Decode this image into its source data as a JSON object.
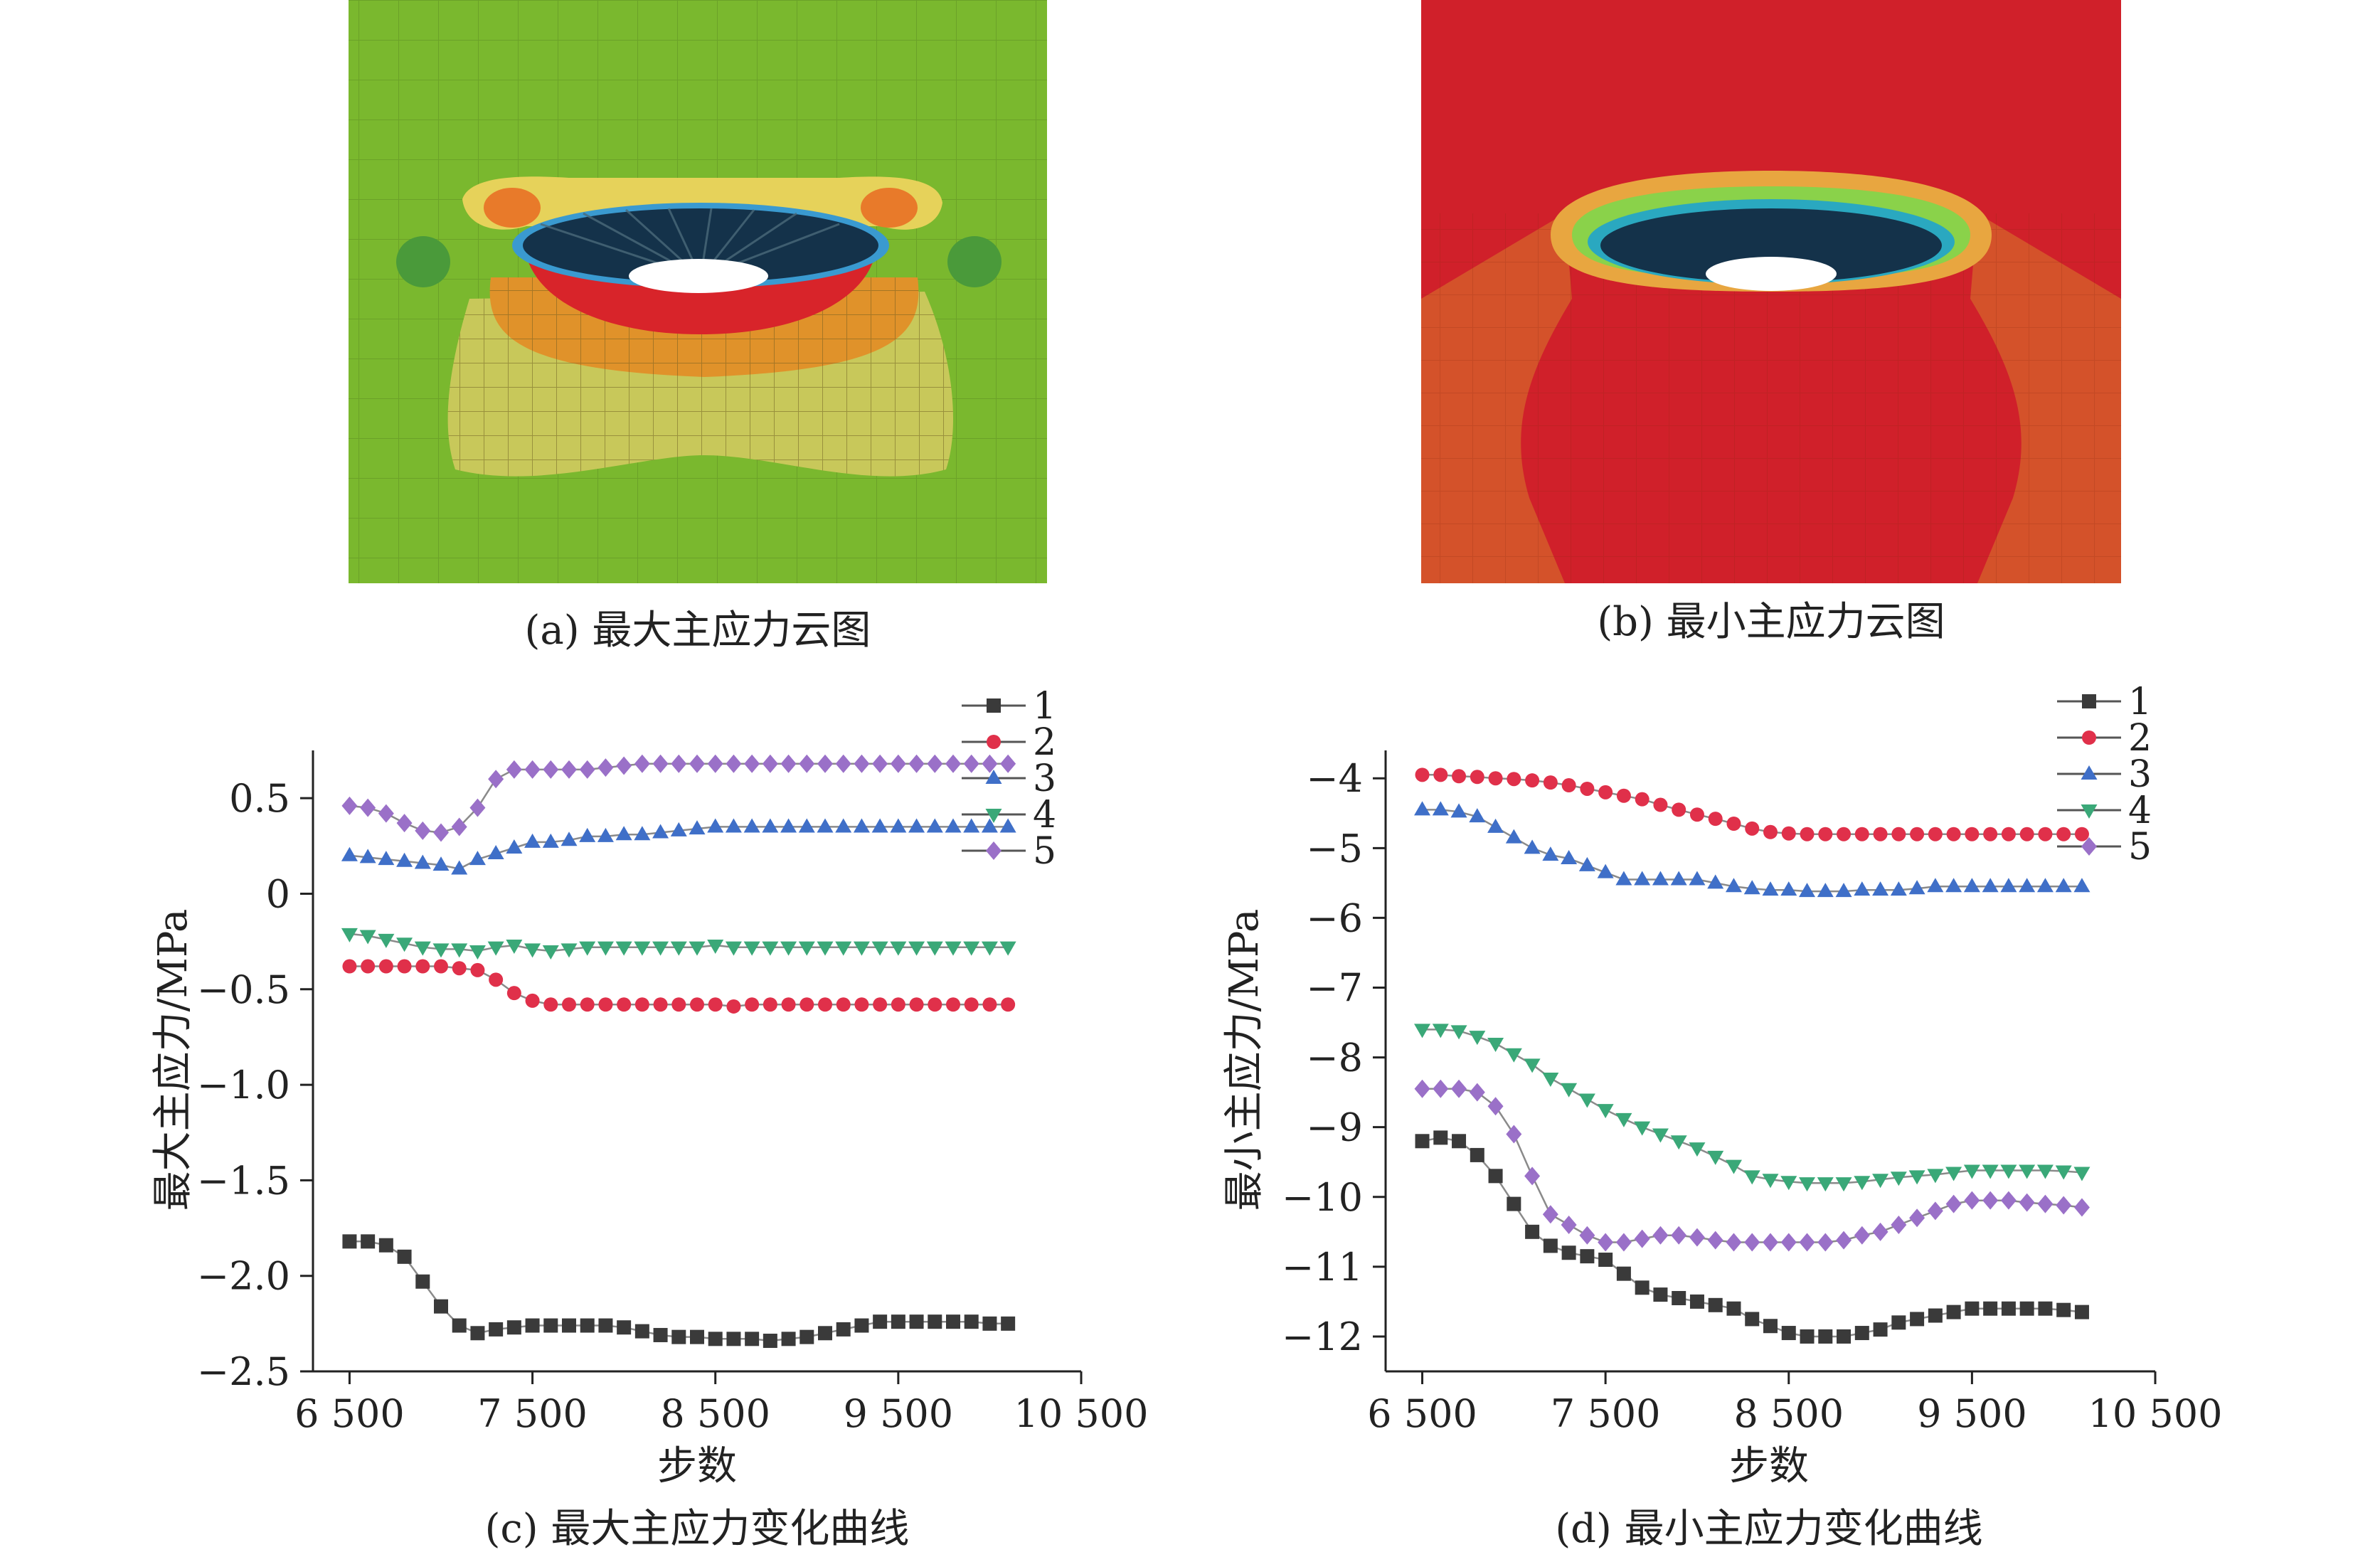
{
  "panels": {
    "a": {
      "caption": "(a) 最大主应力云图",
      "base_color": "#7ab82e"
    },
    "b": {
      "caption": "(b) 最小主应力云图",
      "base_color": "#d0202a"
    }
  },
  "chart_data": [
    {
      "type": "line",
      "panel": "c",
      "title": "(c) 最大主应力变化曲线",
      "xlabel": "步数",
      "ylabel": "最大主应力/MPa",
      "xlim": [
        6300,
        10500
      ],
      "ylim": [
        -2.5,
        0.75
      ],
      "xticks": [
        6500,
        7500,
        8500,
        9500,
        10500
      ],
      "xtick_labels": [
        "6 500",
        "7 500",
        "8 500",
        "9 500",
        "10 500"
      ],
      "yticks": [
        0.5,
        0,
        -0.5,
        -1.0,
        -1.5,
        -2.0,
        -2.5
      ],
      "ytick_labels": [
        "0.5",
        "0",
        "−0.5",
        "−1.0",
        "−1.5",
        "−2.0",
        "−2.5"
      ],
      "legend_position": "top-right",
      "x": [
        6500,
        6600,
        6700,
        6800,
        6900,
        7000,
        7100,
        7200,
        7300,
        7400,
        7500,
        7600,
        7700,
        7800,
        7900,
        8000,
        8100,
        8200,
        8300,
        8400,
        8500,
        8600,
        8700,
        8800,
        8900,
        9000,
        9100,
        9200,
        9300,
        9400,
        9500,
        9600,
        9700,
        9800,
        9900,
        10000,
        10100
      ],
      "series": [
        {
          "name": "1",
          "color": "#3a3a3a",
          "marker": "square",
          "values": [
            -1.82,
            -1.82,
            -1.84,
            -1.9,
            -2.03,
            -2.16,
            -2.26,
            -2.3,
            -2.28,
            -2.27,
            -2.26,
            -2.26,
            -2.26,
            -2.26,
            -2.26,
            -2.27,
            -2.29,
            -2.31,
            -2.32,
            -2.32,
            -2.33,
            -2.33,
            -2.33,
            -2.34,
            -2.33,
            -2.32,
            -2.3,
            -2.28,
            -2.26,
            -2.24,
            -2.24,
            -2.24,
            -2.24,
            -2.24,
            -2.24,
            -2.25,
            -2.25
          ]
        },
        {
          "name": "2",
          "color": "#e0304a",
          "marker": "circle",
          "values": [
            -0.38,
            -0.38,
            -0.38,
            -0.38,
            -0.38,
            -0.38,
            -0.39,
            -0.4,
            -0.45,
            -0.52,
            -0.56,
            -0.58,
            -0.58,
            -0.58,
            -0.58,
            -0.58,
            -0.58,
            -0.58,
            -0.58,
            -0.58,
            -0.58,
            -0.59,
            -0.58,
            -0.58,
            -0.58,
            -0.58,
            -0.58,
            -0.58,
            -0.58,
            -0.58,
            -0.58,
            -0.58,
            -0.58,
            -0.58,
            -0.58,
            -0.58,
            -0.58
          ]
        },
        {
          "name": "3",
          "color": "#3f6fc8",
          "marker": "triangle-up",
          "values": [
            0.2,
            0.19,
            0.18,
            0.17,
            0.16,
            0.15,
            0.13,
            0.18,
            0.21,
            0.24,
            0.27,
            0.27,
            0.28,
            0.3,
            0.3,
            0.31,
            0.31,
            0.32,
            0.33,
            0.34,
            0.35,
            0.35,
            0.35,
            0.35,
            0.35,
            0.35,
            0.35,
            0.35,
            0.35,
            0.35,
            0.35,
            0.35,
            0.35,
            0.35,
            0.35,
            0.35,
            0.35
          ]
        },
        {
          "name": "4",
          "color": "#3aa878",
          "marker": "triangle-down",
          "values": [
            -0.21,
            -0.22,
            -0.24,
            -0.26,
            -0.28,
            -0.29,
            -0.29,
            -0.3,
            -0.28,
            -0.27,
            -0.29,
            -0.3,
            -0.29,
            -0.28,
            -0.28,
            -0.28,
            -0.28,
            -0.28,
            -0.28,
            -0.28,
            -0.27,
            -0.28,
            -0.28,
            -0.28,
            -0.28,
            -0.28,
            -0.28,
            -0.28,
            -0.28,
            -0.28,
            -0.28,
            -0.28,
            -0.28,
            -0.28,
            -0.28,
            -0.28,
            -0.28
          ]
        },
        {
          "name": "5",
          "color": "#9a70c8",
          "marker": "diamond",
          "values": [
            0.46,
            0.45,
            0.42,
            0.37,
            0.33,
            0.32,
            0.35,
            0.45,
            0.6,
            0.65,
            0.65,
            0.65,
            0.65,
            0.65,
            0.66,
            0.67,
            0.68,
            0.68,
            0.68,
            0.68,
            0.68,
            0.68,
            0.68,
            0.68,
            0.68,
            0.68,
            0.68,
            0.68,
            0.68,
            0.68,
            0.68,
            0.68,
            0.68,
            0.68,
            0.68,
            0.68,
            0.68
          ]
        }
      ]
    },
    {
      "type": "line",
      "panel": "d",
      "title": "(d) 最小主应力变化曲线",
      "xlabel": "步数",
      "ylabel": "最小主应力/MPa",
      "xlim": [
        6300,
        10500
      ],
      "ylim": [
        -12.5,
        -3.6
      ],
      "xticks": [
        6500,
        7500,
        8500,
        9500,
        10500
      ],
      "xtick_labels": [
        "6 500",
        "7 500",
        "8 500",
        "9 500",
        "10 500"
      ],
      "yticks": [
        -4,
        -5,
        -6,
        -7,
        -8,
        -9,
        -10,
        -11,
        -12
      ],
      "ytick_labels": [
        "−4",
        "−5",
        "−6",
        "−7",
        "−8",
        "−9",
        "−10",
        "−11",
        "−12"
      ],
      "legend_position": "top-right",
      "x": [
        6500,
        6600,
        6700,
        6800,
        6900,
        7000,
        7100,
        7200,
        7300,
        7400,
        7500,
        7600,
        7700,
        7800,
        7900,
        8000,
        8100,
        8200,
        8300,
        8400,
        8500,
        8600,
        8700,
        8800,
        8900,
        9000,
        9100,
        9200,
        9300,
        9400,
        9500,
        9600,
        9700,
        9800,
        9900,
        10000,
        10100
      ],
      "series": [
        {
          "name": "1",
          "color": "#3a3a3a",
          "marker": "square",
          "values": [
            -9.2,
            -9.15,
            -9.2,
            -9.4,
            -9.7,
            -10.1,
            -10.5,
            -10.7,
            -10.8,
            -10.85,
            -10.9,
            -11.1,
            -11.3,
            -11.4,
            -11.45,
            -11.5,
            -11.55,
            -11.6,
            -11.75,
            -11.85,
            -11.95,
            -12.0,
            -12.0,
            -12.0,
            -11.95,
            -11.9,
            -11.8,
            -11.75,
            -11.7,
            -11.65,
            -11.6,
            -11.6,
            -11.6,
            -11.6,
            -11.6,
            -11.62,
            -11.65
          ]
        },
        {
          "name": "2",
          "color": "#e0304a",
          "marker": "circle",
          "values": [
            -3.95,
            -3.95,
            -3.97,
            -3.98,
            -4.0,
            -4.01,
            -4.03,
            -4.06,
            -4.1,
            -4.15,
            -4.2,
            -4.25,
            -4.3,
            -4.38,
            -4.45,
            -4.52,
            -4.58,
            -4.65,
            -4.72,
            -4.77,
            -4.79,
            -4.8,
            -4.8,
            -4.8,
            -4.8,
            -4.8,
            -4.8,
            -4.8,
            -4.8,
            -4.8,
            -4.8,
            -4.8,
            -4.8,
            -4.8,
            -4.8,
            -4.8,
            -4.8
          ]
        },
        {
          "name": "3",
          "color": "#3f6fc8",
          "marker": "triangle-up",
          "values": [
            -4.45,
            -4.45,
            -4.48,
            -4.55,
            -4.7,
            -4.85,
            -5.0,
            -5.1,
            -5.15,
            -5.25,
            -5.35,
            -5.45,
            -5.45,
            -5.45,
            -5.45,
            -5.45,
            -5.5,
            -5.55,
            -5.58,
            -5.6,
            -5.6,
            -5.62,
            -5.62,
            -5.62,
            -5.6,
            -5.6,
            -5.6,
            -5.58,
            -5.55,
            -5.55,
            -5.55,
            -5.55,
            -5.55,
            -5.55,
            -5.55,
            -5.55,
            -5.55
          ]
        },
        {
          "name": "4",
          "color": "#3aa878",
          "marker": "triangle-down",
          "values": [
            -7.6,
            -7.6,
            -7.62,
            -7.7,
            -7.8,
            -7.95,
            -8.1,
            -8.3,
            -8.45,
            -8.6,
            -8.75,
            -8.88,
            -9.0,
            -9.1,
            -9.2,
            -9.3,
            -9.42,
            -9.55,
            -9.7,
            -9.75,
            -9.78,
            -9.8,
            -9.8,
            -9.8,
            -9.78,
            -9.75,
            -9.72,
            -9.7,
            -9.68,
            -9.65,
            -9.62,
            -9.62,
            -9.62,
            -9.62,
            -9.62,
            -9.63,
            -9.65
          ]
        },
        {
          "name": "5",
          "color": "#9a70c8",
          "marker": "diamond",
          "values": [
            -8.45,
            -8.45,
            -8.45,
            -8.5,
            -8.7,
            -9.1,
            -9.7,
            -10.25,
            -10.4,
            -10.55,
            -10.65,
            -10.65,
            -10.6,
            -10.55,
            -10.55,
            -10.58,
            -10.62,
            -10.65,
            -10.65,
            -10.65,
            -10.65,
            -10.65,
            -10.65,
            -10.62,
            -10.55,
            -10.5,
            -10.4,
            -10.3,
            -10.2,
            -10.1,
            -10.05,
            -10.05,
            -10.05,
            -10.08,
            -10.1,
            -10.12,
            -10.15
          ]
        }
      ]
    }
  ]
}
